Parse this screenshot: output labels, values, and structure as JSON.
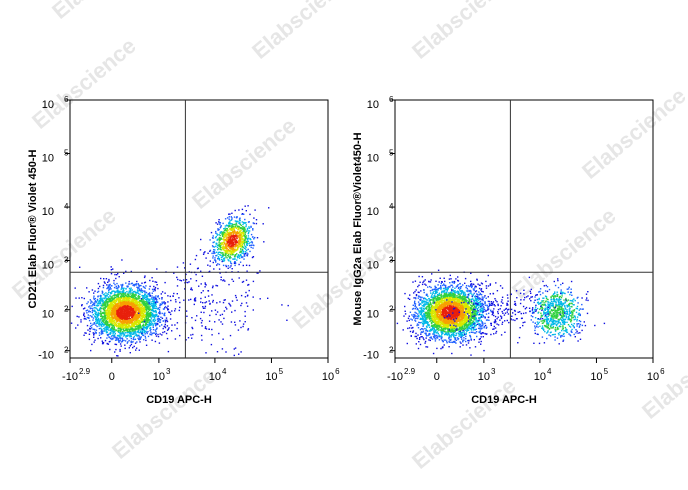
{
  "watermark": "Elabscience",
  "chart_data": [
    {
      "type": "dot-plot",
      "x_label": "CD19 APC-H",
      "y_label": "CD21 Elab Fluor® Violet 450-H",
      "xlim": [
        -794,
        1000000
      ],
      "ylim": [
        -150,
        1000000
      ],
      "xticks": [
        {
          "value": -794,
          "label": "-10",
          "exponent": "2.9"
        },
        0,
        {
          "value": 1000,
          "label": "10",
          "exponent": "3"
        },
        {
          "value": 10000,
          "label": "10",
          "exponent": "4"
        },
        {
          "value": 100000,
          "label": "10",
          "exponent": "5"
        },
        {
          "value": 1000000,
          "label": "10",
          "exponent": "6"
        }
      ],
      "yticks": [
        {
          "value": -100,
          "label": "-10",
          "exponent": "2"
        },
        {
          "value": 100,
          "label": "10",
          "exponent": "2"
        },
        {
          "value": 1000,
          "label": "10",
          "exponent": "3"
        },
        {
          "value": 10000,
          "label": "10",
          "exponent": "4"
        },
        {
          "value": 100000,
          "label": "10",
          "exponent": "5"
        },
        {
          "value": 1000000,
          "label": "10",
          "exponent": "6"
        }
      ],
      "gate": {
        "x": 3000,
        "y": 600
      }
    },
    {
      "type": "dot-plot",
      "x_label": "CD19 APC-H",
      "y_label": "Mouse IgG2a Elab Fluor®Violet450-H",
      "xlim": [
        -794,
        1000000
      ],
      "ylim": [
        -150,
        1000000
      ],
      "xticks": [
        {
          "value": -794,
          "label": "-10",
          "exponent": "2.9"
        },
        0,
        {
          "value": 1000,
          "label": "10",
          "exponent": "3"
        },
        {
          "value": 10000,
          "label": "10",
          "exponent": "4"
        },
        {
          "value": 100000,
          "label": "10",
          "exponent": "5"
        },
        {
          "value": 1000000,
          "label": "10",
          "exponent": "6"
        }
      ],
      "yticks": [
        {
          "value": -100,
          "label": "-10",
          "exponent": "2"
        },
        {
          "value": 100,
          "label": "10",
          "exponent": "2"
        },
        {
          "value": 1000,
          "label": "10",
          "exponent": "3"
        },
        {
          "value": 10000,
          "label": "10",
          "exponent": "4"
        },
        {
          "value": 100000,
          "label": "10",
          "exponent": "5"
        },
        {
          "value": 1000000,
          "label": "10",
          "exponent": "6"
        }
      ],
      "gate": {
        "x": 3000,
        "y": 600
      }
    }
  ]
}
